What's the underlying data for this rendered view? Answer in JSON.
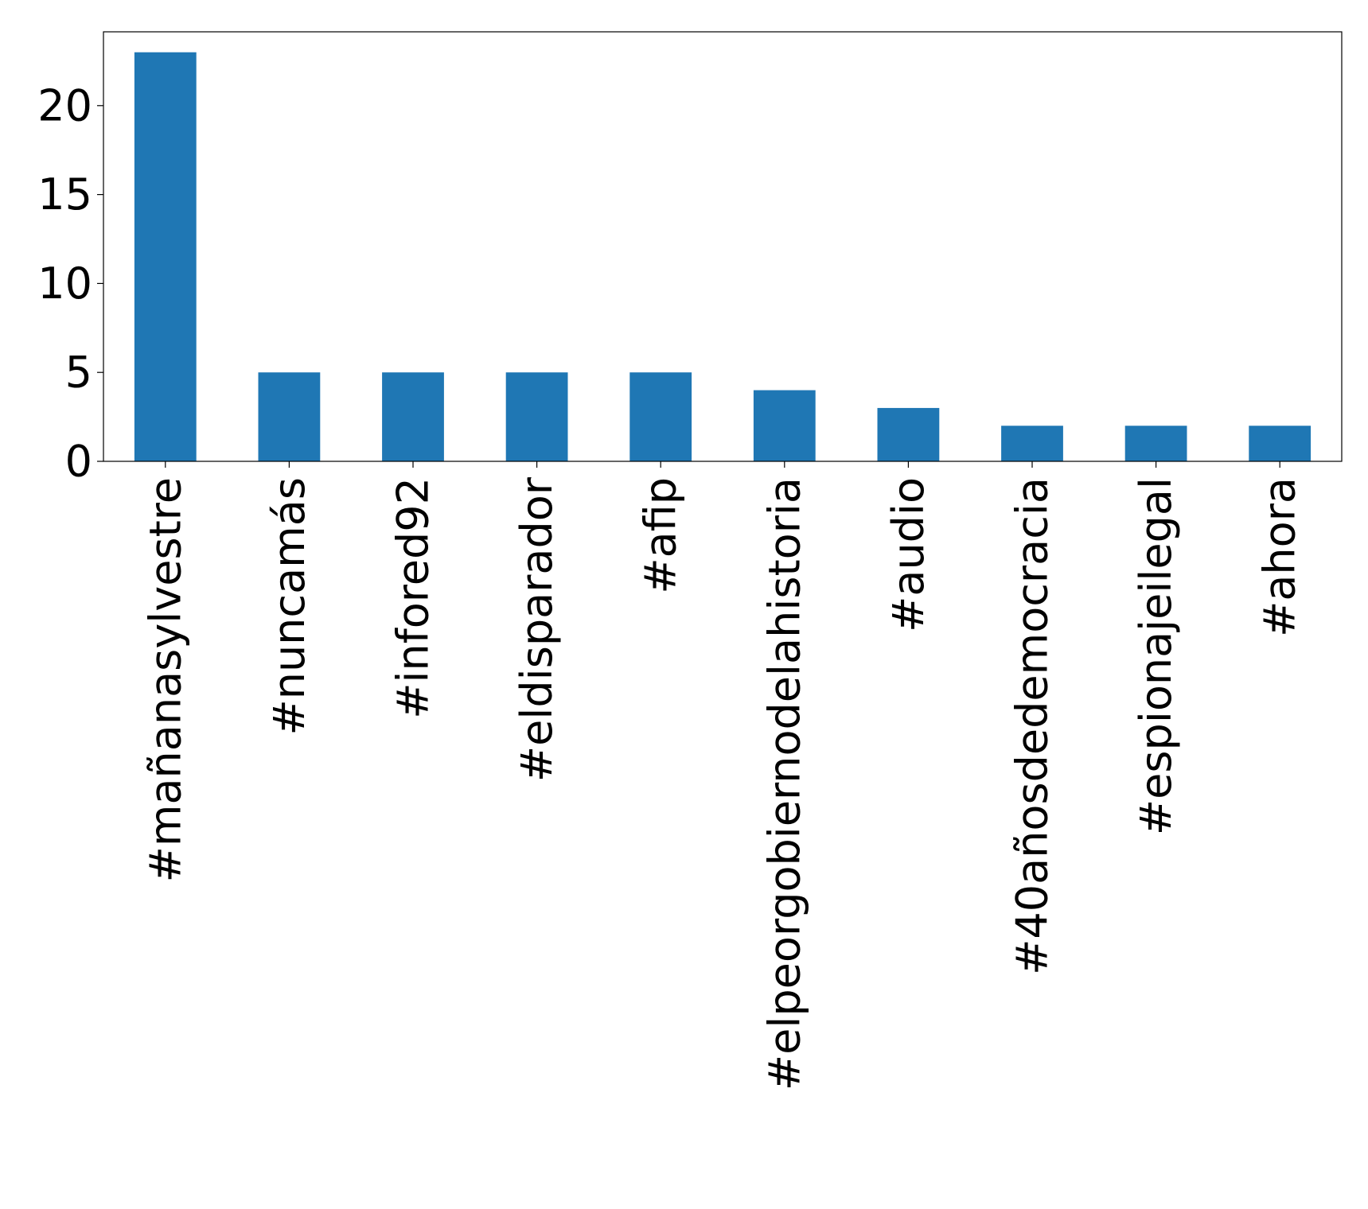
{
  "chart_data": {
    "type": "bar",
    "title": "",
    "xlabel": "",
    "ylabel": "",
    "categories": [
      "#mañanasylvestre",
      "#nuncamás",
      "#infored92",
      "#eldisparador",
      "#afip",
      "#elpeorgobiernodelahistoria",
      "#audio",
      "#40añosdedemocracia",
      "#espionajeilegal",
      "#ahora"
    ],
    "values": [
      23,
      5,
      5,
      5,
      5,
      4,
      3,
      2,
      2,
      2
    ],
    "ylim": [
      0,
      24.15
    ],
    "yticks": [
      0,
      5,
      10,
      15,
      20
    ],
    "bar_color": "#1f77b4",
    "grid": false,
    "legend": "none"
  }
}
